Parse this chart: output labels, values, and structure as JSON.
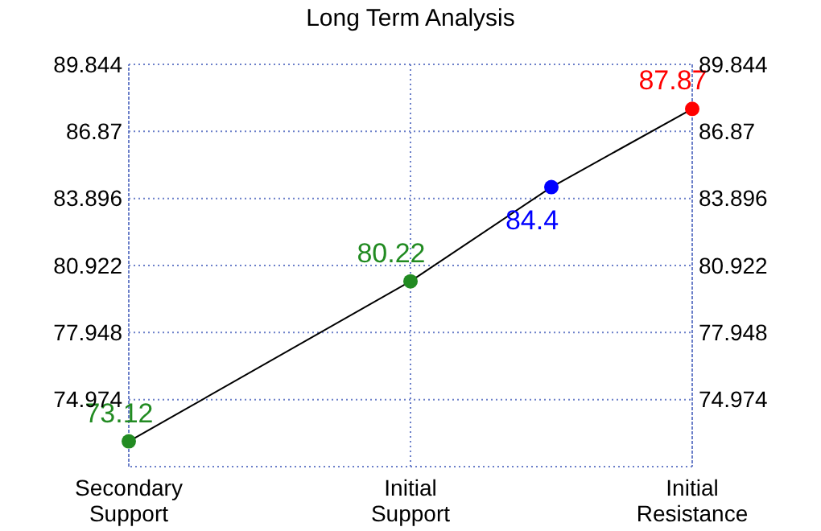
{
  "chart_data": {
    "type": "line",
    "title": "Long Term Analysis",
    "categories": [
      "Secondary\nSupport",
      null,
      "Initial\nSupport",
      null,
      "Initial\nResistance"
    ],
    "series": [
      {
        "color": "#000000",
        "colors": [
          "#228b22",
          null,
          "#228b22",
          "#0000ff",
          "#ff0000"
        ],
        "values": [
          73.12,
          null,
          80.22,
          84.4,
          87.87
        ]
      }
    ],
    "ylim": [
      72,
      89.844
    ],
    "yticks": [
      74.974,
      77.948,
      80.922,
      83.896,
      86.87,
      89.844
    ],
    "y2lim": [
      72,
      89.844
    ],
    "y2ticks": [
      74.974,
      77.948,
      80.922,
      83.896,
      86.87,
      89.844
    ],
    "grid": true,
    "marker": "circle",
    "line_style": "solid",
    "data_labels": true
  }
}
